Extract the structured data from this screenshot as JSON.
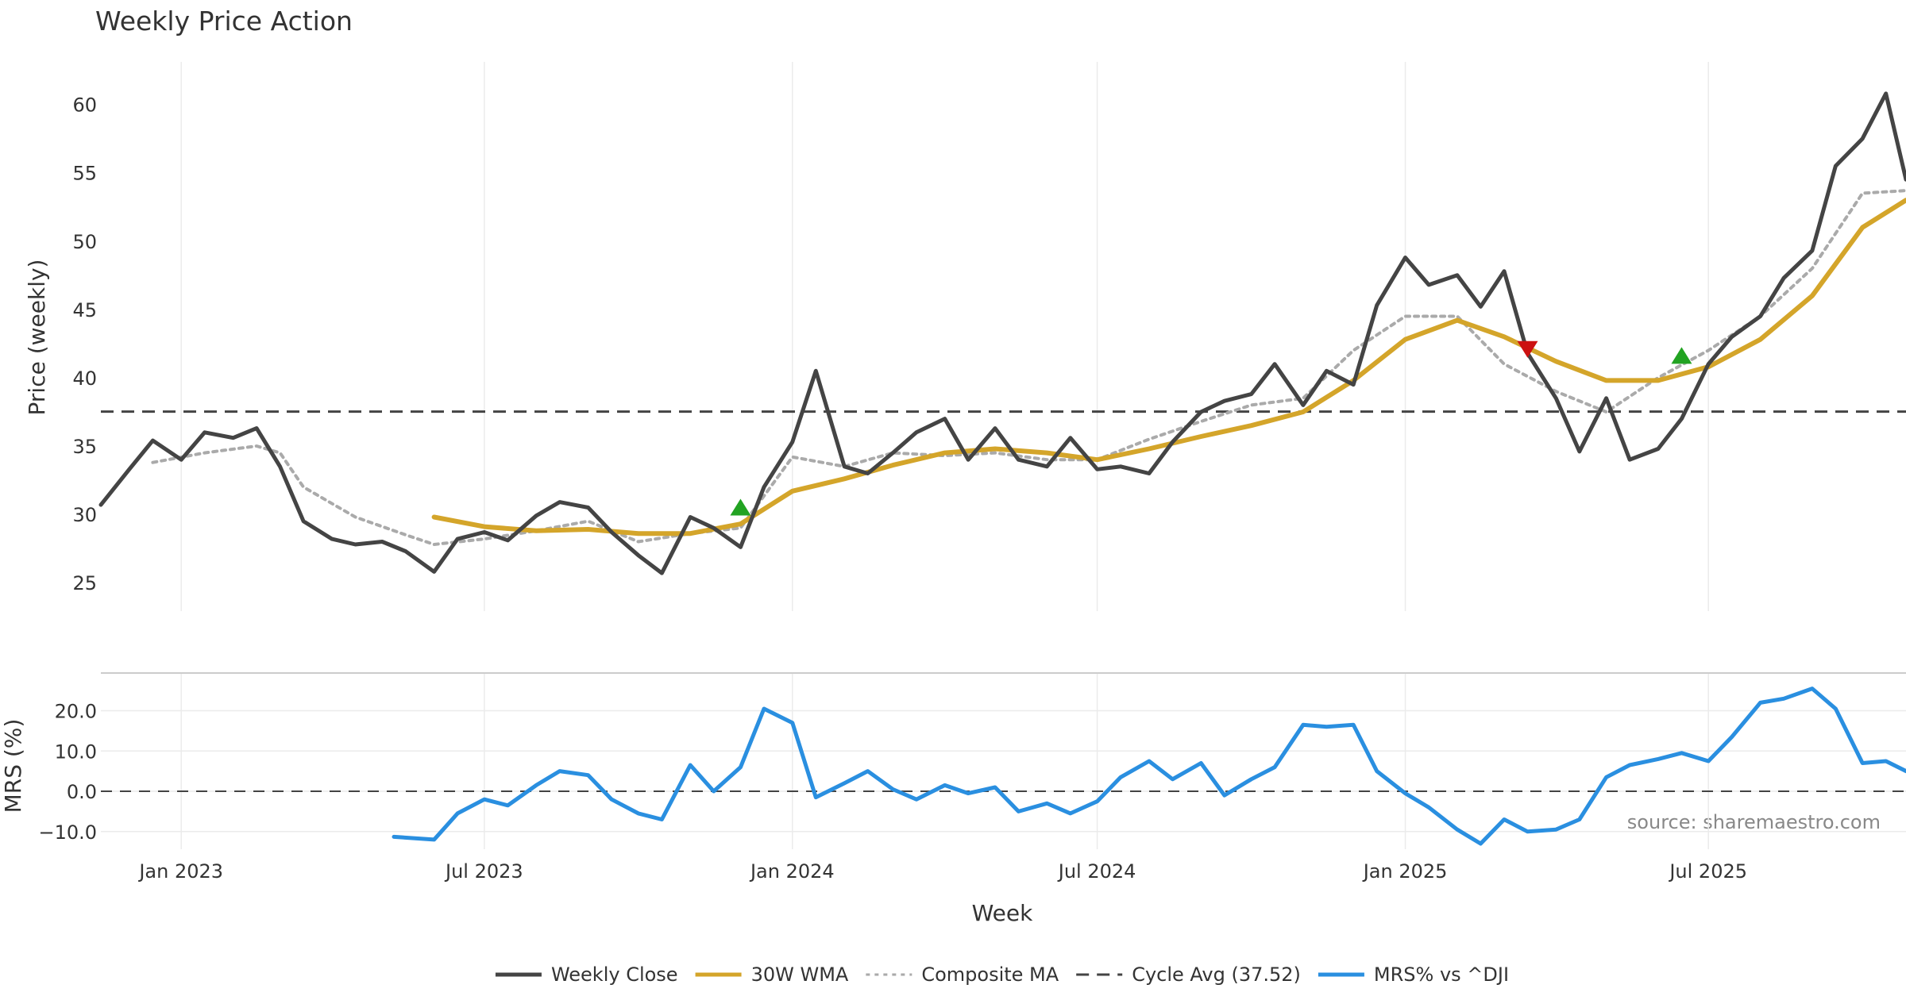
{
  "chart_data": {
    "type": "line",
    "title": "Weekly Price Action",
    "xlabel": "Week",
    "ylabel": "Price (weekly)",
    "ylabel_lower": "MRS (%)",
    "source_note": "source: sharemaestro.com",
    "x_start": "2022-11-14",
    "x_end": "2025-10-27",
    "x_range": [
      "2022-11-14",
      "2025-10-27"
    ],
    "ylim": [
      23.5,
      63
    ],
    "ylim_lower": [
      -13,
      27
    ],
    "grid": true,
    "x_ticks": [
      {
        "date": "2023-01-01",
        "label": "Jan 2023"
      },
      {
        "date": "2023-07-01",
        "label": "Jul 2023"
      },
      {
        "date": "2024-01-01",
        "label": "Jan 2024"
      },
      {
        "date": "2024-07-01",
        "label": "Jul 2024"
      },
      {
        "date": "2025-01-01",
        "label": "Jan 2025"
      },
      {
        "date": "2025-07-01",
        "label": "Jul 2025"
      }
    ],
    "y_ticks": [
      {
        "value": 25,
        "label": "25"
      },
      {
        "value": 30,
        "label": "30"
      },
      {
        "value": 35,
        "label": "35"
      },
      {
        "value": 40,
        "label": "40"
      },
      {
        "value": 45,
        "label": "45"
      },
      {
        "value": 50,
        "label": "50"
      },
      {
        "value": 55,
        "label": "55"
      },
      {
        "value": 60,
        "label": "60"
      }
    ],
    "y_ticks_lower": [
      {
        "value": -10,
        "label": "−10.0"
      },
      {
        "value": 0,
        "label": "0.0"
      },
      {
        "value": 10,
        "label": "10.0"
      },
      {
        "value": 20,
        "label": "20.0"
      }
    ],
    "legend": {
      "placement": "bottom-center",
      "entries": [
        {
          "label": "Weekly Close",
          "color": "#444444",
          "style": "solid"
        },
        {
          "label": "30W WMA",
          "color": "#d4a52a",
          "style": "solid"
        },
        {
          "label": "Composite MA",
          "color": "#aaaaaa",
          "style": "dotted"
        },
        {
          "label": "Cycle Avg (37.52)",
          "color": "#444444",
          "style": "dashed"
        },
        {
          "label": "MRS% vs ^DJI",
          "color": "#2a8fe0",
          "style": "solid"
        }
      ]
    },
    "cycle_avg": 37.52,
    "mrs_zero": 0,
    "series": [
      {
        "name": "Weekly Close",
        "color": "#444444",
        "x": [
          "2022-11-14",
          "2022-12-01",
          "2022-12-15",
          "2023-01-01",
          "2023-01-15",
          "2023-02-01",
          "2023-02-15",
          "2023-03-01",
          "2023-03-15",
          "2023-04-01",
          "2023-04-15",
          "2023-05-01",
          "2023-05-15",
          "2023-06-01",
          "2023-06-15",
          "2023-07-01",
          "2023-07-15",
          "2023-08-01",
          "2023-08-15",
          "2023-09-01",
          "2023-09-15",
          "2023-10-01",
          "2023-10-15",
          "2023-11-01",
          "2023-11-15",
          "2023-12-01",
          "2023-12-15",
          "2024-01-01",
          "2024-01-15",
          "2024-02-01",
          "2024-02-15",
          "2024-03-01",
          "2024-03-15",
          "2024-04-01",
          "2024-04-15",
          "2024-05-01",
          "2024-05-15",
          "2024-06-01",
          "2024-06-15",
          "2024-07-01",
          "2024-07-15",
          "2024-08-01",
          "2024-08-15",
          "2024-09-01",
          "2024-09-15",
          "2024-10-01",
          "2024-10-15",
          "2024-11-01",
          "2024-11-15",
          "2024-12-01",
          "2024-12-15",
          "2025-01-01",
          "2025-01-15",
          "2025-02-01",
          "2025-02-15",
          "2025-03-01",
          "2025-03-15",
          "2025-04-01",
          "2025-04-15",
          "2025-05-01",
          "2025-05-15",
          "2025-06-01",
          "2025-06-15",
          "2025-07-01",
          "2025-07-15",
          "2025-08-01",
          "2025-08-15",
          "2025-09-01",
          "2025-09-15",
          "2025-10-01",
          "2025-10-15",
          "2025-10-27"
        ],
        "values": [
          30.7,
          33.3,
          35.4,
          34.0,
          36.0,
          35.6,
          36.3,
          33.5,
          29.5,
          28.2,
          27.8,
          28.0,
          27.3,
          25.8,
          28.2,
          28.7,
          28.1,
          29.9,
          30.9,
          30.5,
          28.7,
          27.0,
          25.7,
          29.8,
          29.0,
          27.6,
          32.0,
          35.3,
          40.5,
          33.5,
          33.0,
          34.5,
          36.0,
          37.0,
          34.0,
          36.3,
          34.0,
          33.5,
          35.6,
          33.3,
          33.5,
          33.0,
          35.3,
          37.5,
          38.3,
          38.8,
          41.0,
          38.0,
          40.5,
          39.5,
          45.3,
          48.8,
          46.8,
          47.5,
          45.2,
          47.8,
          41.8,
          38.5,
          34.6,
          38.5,
          34.0,
          34.8,
          37.0,
          41.0,
          43.0,
          44.5,
          47.3,
          49.3,
          55.5,
          57.5,
          60.8,
          54.5
        ]
      },
      {
        "name": "30W WMA",
        "color": "#d4a52a",
        "x": [
          "2023-06-01",
          "2023-07-01",
          "2023-08-01",
          "2023-09-01",
          "2023-10-01",
          "2023-11-01",
          "2023-12-01",
          "2024-01-01",
          "2024-02-01",
          "2024-03-01",
          "2024-04-01",
          "2024-05-01",
          "2024-06-01",
          "2024-07-01",
          "2024-08-01",
          "2024-09-01",
          "2024-10-01",
          "2024-11-01",
          "2024-12-01",
          "2025-01-01",
          "2025-02-01",
          "2025-03-01",
          "2025-04-01",
          "2025-05-01",
          "2025-06-01",
          "2025-07-01",
          "2025-08-01",
          "2025-09-01",
          "2025-10-01",
          "2025-10-27"
        ],
        "values": [
          29.8,
          29.1,
          28.8,
          28.9,
          28.6,
          28.6,
          29.3,
          31.7,
          32.6,
          33.6,
          34.5,
          34.8,
          34.5,
          34.0,
          34.8,
          35.7,
          36.5,
          37.5,
          39.8,
          42.8,
          44.2,
          43.0,
          41.2,
          39.8,
          39.8,
          40.8,
          42.8,
          46.0,
          51.0,
          53.0
        ]
      },
      {
        "name": "Composite MA",
        "color": "#aaaaaa",
        "x": [
          "2022-12-15",
          "2023-01-15",
          "2023-02-15",
          "2023-03-01",
          "2023-03-15",
          "2023-04-15",
          "2023-05-15",
          "2023-06-01",
          "2023-07-01",
          "2023-08-01",
          "2023-09-01",
          "2023-10-01",
          "2023-11-01",
          "2023-12-01",
          "2024-01-01",
          "2024-02-01",
          "2024-03-01",
          "2024-04-01",
          "2024-05-01",
          "2024-06-01",
          "2024-07-01",
          "2024-08-01",
          "2024-09-01",
          "2024-10-01",
          "2024-11-01",
          "2024-12-01",
          "2025-01-01",
          "2025-02-01",
          "2025-03-01",
          "2025-04-01",
          "2025-05-01",
          "2025-06-01",
          "2025-07-01",
          "2025-08-01",
          "2025-09-01",
          "2025-10-01",
          "2025-10-27"
        ],
        "values": [
          33.8,
          34.5,
          35.0,
          34.5,
          32.0,
          29.8,
          28.5,
          27.8,
          28.2,
          28.8,
          29.5,
          28.0,
          28.6,
          29.0,
          34.2,
          33.5,
          34.5,
          34.3,
          34.5,
          34.0,
          34.0,
          35.5,
          36.8,
          38.0,
          38.5,
          42.0,
          44.5,
          44.5,
          41.0,
          39.0,
          37.5,
          40.0,
          42.0,
          44.5,
          48.0,
          53.5,
          53.7
        ]
      },
      {
        "name": "MRS% vs ^DJI",
        "color": "#2a8fe0",
        "x": [
          "2023-05-08",
          "2023-06-01",
          "2023-06-15",
          "2023-07-01",
          "2023-07-15",
          "2023-08-01",
          "2023-08-15",
          "2023-09-01",
          "2023-09-15",
          "2023-10-01",
          "2023-10-15",
          "2023-11-01",
          "2023-11-15",
          "2023-12-01",
          "2023-12-15",
          "2024-01-01",
          "2024-01-15",
          "2024-02-01",
          "2024-02-15",
          "2024-03-01",
          "2024-03-15",
          "2024-04-01",
          "2024-04-15",
          "2024-05-01",
          "2024-05-15",
          "2024-06-01",
          "2024-06-15",
          "2024-07-01",
          "2024-07-15",
          "2024-08-01",
          "2024-08-15",
          "2024-09-01",
          "2024-09-15",
          "2024-10-01",
          "2024-10-15",
          "2024-11-01",
          "2024-11-15",
          "2024-12-01",
          "2024-12-15",
          "2025-01-01",
          "2025-01-15",
          "2025-02-01",
          "2025-02-15",
          "2025-03-01",
          "2025-03-15",
          "2025-04-01",
          "2025-04-15",
          "2025-05-01",
          "2025-05-15",
          "2025-06-01",
          "2025-06-15",
          "2025-07-01",
          "2025-07-15",
          "2025-08-01",
          "2025-08-15",
          "2025-09-01",
          "2025-09-15",
          "2025-10-01",
          "2025-10-15",
          "2025-10-27"
        ],
        "values": [
          -11.3,
          -12.0,
          -5.5,
          -2.0,
          -3.5,
          1.5,
          5.0,
          4.0,
          -2.0,
          -5.5,
          -7.0,
          6.5,
          0.0,
          6.0,
          20.5,
          17.0,
          -1.5,
          2.0,
          5.0,
          0.5,
          -2.0,
          1.5,
          -0.5,
          1.0,
          -5.0,
          -3.0,
          -5.5,
          -2.5,
          3.5,
          7.5,
          3.0,
          7.0,
          -1.0,
          3.0,
          6.0,
          16.5,
          16.0,
          16.5,
          5.0,
          -0.5,
          -4.0,
          -9.5,
          -13.0,
          -7.0,
          -10.0,
          -9.5,
          -7.0,
          3.5,
          6.5,
          8.0,
          9.5,
          7.5,
          13.5,
          22.0,
          23.0,
          25.5,
          20.5,
          7.0,
          7.5,
          5.0
        ]
      }
    ],
    "signals": [
      {
        "x": "2023-12-01",
        "y": 30.5,
        "type": "buy",
        "color": "#22a322"
      },
      {
        "x": "2025-03-15",
        "y": 42.1,
        "type": "sell",
        "color": "#cc1111"
      },
      {
        "x": "2025-06-15",
        "y": 41.6,
        "type": "buy",
        "color": "#22a322"
      }
    ]
  }
}
